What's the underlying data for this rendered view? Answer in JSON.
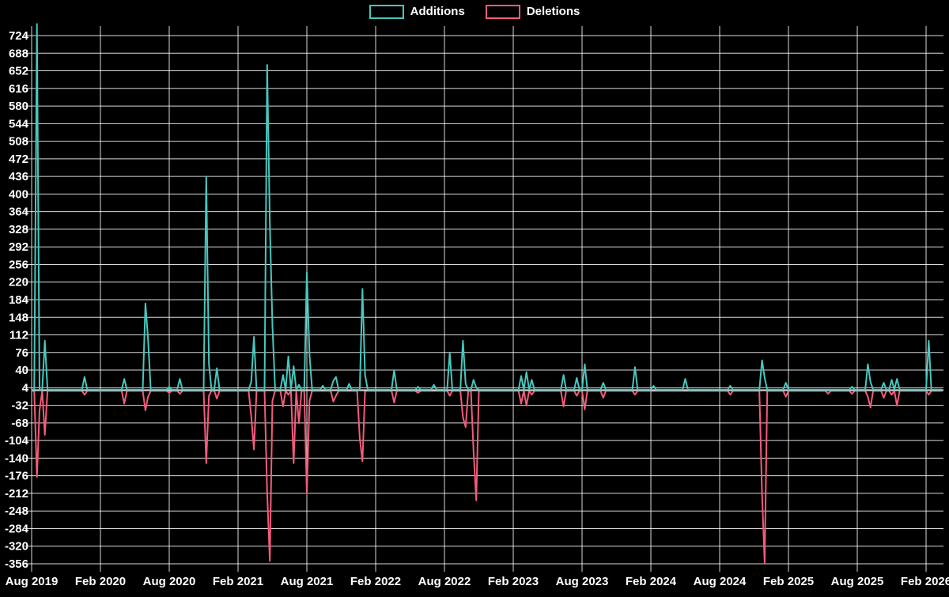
{
  "legend": {
    "items": [
      {
        "label": "Additions",
        "color": "#46c8be"
      },
      {
        "label": "Deletions",
        "color": "#f45b7c"
      }
    ]
  },
  "chart_data": {
    "type": "line",
    "title": "",
    "xlabel": "",
    "ylabel": "",
    "legend_position": "top",
    "grid": true,
    "background_color": "#000000",
    "text_color": "#ffffff",
    "grid_color": "#ffffff",
    "axis_line_color": "#cfcfcf",
    "x_axis": {
      "tick_labels": [
        "Aug 2019",
        "Feb 2020",
        "Aug 2020",
        "Feb 2021",
        "Aug 2021",
        "Feb 2022",
        "Aug 2022",
        "Feb 2023",
        "Aug 2023",
        "Feb 2024",
        "Aug 2024",
        "Feb 2025",
        "Aug 2025",
        "Feb 2026"
      ],
      "tick_week_positions": [
        0,
        26,
        52,
        78,
        104,
        130,
        156,
        182,
        208,
        234,
        260,
        286,
        312,
        338
      ],
      "weeks_total": 345
    },
    "y_axis": {
      "tick_labels": [
        724,
        688,
        652,
        616,
        580,
        544,
        508,
        472,
        436,
        400,
        364,
        328,
        292,
        256,
        220,
        184,
        148,
        112,
        76,
        40,
        4,
        -32,
        -68,
        -104,
        -140,
        -176,
        -212,
        -248,
        -284,
        -320,
        -356
      ],
      "min": -356,
      "max": 724,
      "step": 36
    },
    "series": [
      {
        "name": "Additions",
        "color": "#46c8be",
        "default_value": 0,
        "points_sparse_week_value": [
          [
            2,
            748
          ],
          [
            5,
            100
          ],
          [
            20,
            26
          ],
          [
            35,
            22
          ],
          [
            43,
            176
          ],
          [
            44,
            104
          ],
          [
            52,
            6
          ],
          [
            56,
            22
          ],
          [
            66,
            436
          ],
          [
            67,
            52
          ],
          [
            70,
            44
          ],
          [
            83,
            16
          ],
          [
            84,
            108
          ],
          [
            89,
            664
          ],
          [
            90,
            340
          ],
          [
            91,
            130
          ],
          [
            95,
            30
          ],
          [
            97,
            68
          ],
          [
            99,
            48
          ],
          [
            101,
            10
          ],
          [
            104,
            240
          ],
          [
            105,
            70
          ],
          [
            110,
            8
          ],
          [
            114,
            18
          ],
          [
            115,
            26
          ],
          [
            120,
            12
          ],
          [
            125,
            206
          ],
          [
            126,
            30
          ],
          [
            137,
            40
          ],
          [
            146,
            6
          ],
          [
            152,
            10
          ],
          [
            158,
            76
          ],
          [
            163,
            100
          ],
          [
            164,
            12
          ],
          [
            167,
            20
          ],
          [
            168,
            4
          ],
          [
            185,
            28
          ],
          [
            187,
            36
          ],
          [
            189,
            20
          ],
          [
            201,
            30
          ],
          [
            206,
            24
          ],
          [
            209,
            52
          ],
          [
            216,
            14
          ],
          [
            228,
            46
          ],
          [
            235,
            8
          ],
          [
            247,
            22
          ],
          [
            264,
            8
          ],
          [
            276,
            60
          ],
          [
            277,
            24
          ],
          [
            285,
            14
          ],
          [
            310,
            6
          ],
          [
            316,
            52
          ],
          [
            317,
            16
          ],
          [
            322,
            14
          ],
          [
            325,
            20
          ],
          [
            327,
            22
          ],
          [
            339,
            100
          ]
        ]
      },
      {
        "name": "Deletions",
        "color": "#f45b7c",
        "default_value": 0,
        "points_sparse_week_value": [
          [
            2,
            -176
          ],
          [
            3,
            -40
          ],
          [
            5,
            -90
          ],
          [
            20,
            -8
          ],
          [
            35,
            -26
          ],
          [
            43,
            -40
          ],
          [
            44,
            -12
          ],
          [
            52,
            -4
          ],
          [
            56,
            -6
          ],
          [
            66,
            -148
          ],
          [
            67,
            -10
          ],
          [
            70,
            -16
          ],
          [
            83,
            -52
          ],
          [
            84,
            -120
          ],
          [
            89,
            -208
          ],
          [
            90,
            -348
          ],
          [
            91,
            -20
          ],
          [
            95,
            -32
          ],
          [
            97,
            -8
          ],
          [
            99,
            -148
          ],
          [
            101,
            -66
          ],
          [
            104,
            -210
          ],
          [
            105,
            -20
          ],
          [
            114,
            -22
          ],
          [
            115,
            -10
          ],
          [
            124,
            -96
          ],
          [
            125,
            -144
          ],
          [
            137,
            -24
          ],
          [
            146,
            -4
          ],
          [
            158,
            -10
          ],
          [
            163,
            -54
          ],
          [
            164,
            -74
          ],
          [
            167,
            -124
          ],
          [
            168,
            -224
          ],
          [
            185,
            -26
          ],
          [
            187,
            -30
          ],
          [
            189,
            -8
          ],
          [
            201,
            -32
          ],
          [
            206,
            -10
          ],
          [
            209,
            -38
          ],
          [
            216,
            -14
          ],
          [
            228,
            -8
          ],
          [
            264,
            -8
          ],
          [
            276,
            -212
          ],
          [
            277,
            -352
          ],
          [
            285,
            -12
          ],
          [
            301,
            -6
          ],
          [
            310,
            -6
          ],
          [
            316,
            -12
          ],
          [
            317,
            -34
          ],
          [
            322,
            -14
          ],
          [
            325,
            -8
          ],
          [
            327,
            -30
          ],
          [
            339,
            -8
          ]
        ]
      }
    ]
  }
}
